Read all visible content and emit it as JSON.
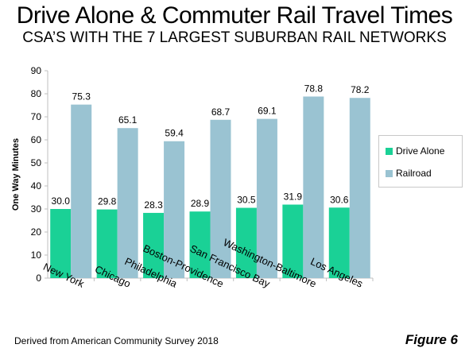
{
  "header": {
    "title": "Drive Alone & Commuter Rail Travel Times",
    "subtitle": "CSA’S WITH THE 7 LARGEST SUBURBAN RAIL NETWORKS"
  },
  "footer": {
    "source": "Derived from American Community Survey 2018",
    "figure_label": "Figure 6"
  },
  "legend": {
    "items": [
      {
        "label": "Drive Alone",
        "color": "#1ad196"
      },
      {
        "label": "Railroad",
        "color": "#9ac3d2"
      }
    ]
  },
  "chart_data": {
    "type": "bar",
    "title": "Drive Alone & Commuter Rail Travel Times",
    "subtitle": "CSA’S WITH THE 7 LARGEST SUBURBAN RAIL NETWORKS",
    "xlabel": "",
    "ylabel": "One Way Minutes",
    "ylim": [
      0,
      90
    ],
    "yticks": [
      0,
      10,
      20,
      30,
      40,
      50,
      60,
      70,
      80,
      90
    ],
    "grid": false,
    "legend_position": "right",
    "categories": [
      "New York",
      "Chicago",
      "Philadelphia",
      "Boston-Providence",
      "San Francisco Bay",
      "Washington-Baltimore",
      "Los Angeles"
    ],
    "series": [
      {
        "name": "Drive Alone",
        "color": "#1ad196",
        "values": [
          30.0,
          29.8,
          28.3,
          28.9,
          30.5,
          31.9,
          30.6
        ],
        "labels": [
          "30.0",
          "29.8",
          "28.3",
          "28.9",
          "30.5",
          "31.9",
          "30.6"
        ]
      },
      {
        "name": "Railroad",
        "color": "#9ac3d2",
        "values": [
          75.3,
          65.1,
          59.4,
          68.7,
          69.1,
          78.8,
          78.2
        ],
        "labels": [
          "75.3",
          "65.1",
          "59.4",
          "68.7",
          "69.1",
          "78.8",
          "78.2"
        ]
      }
    ]
  }
}
